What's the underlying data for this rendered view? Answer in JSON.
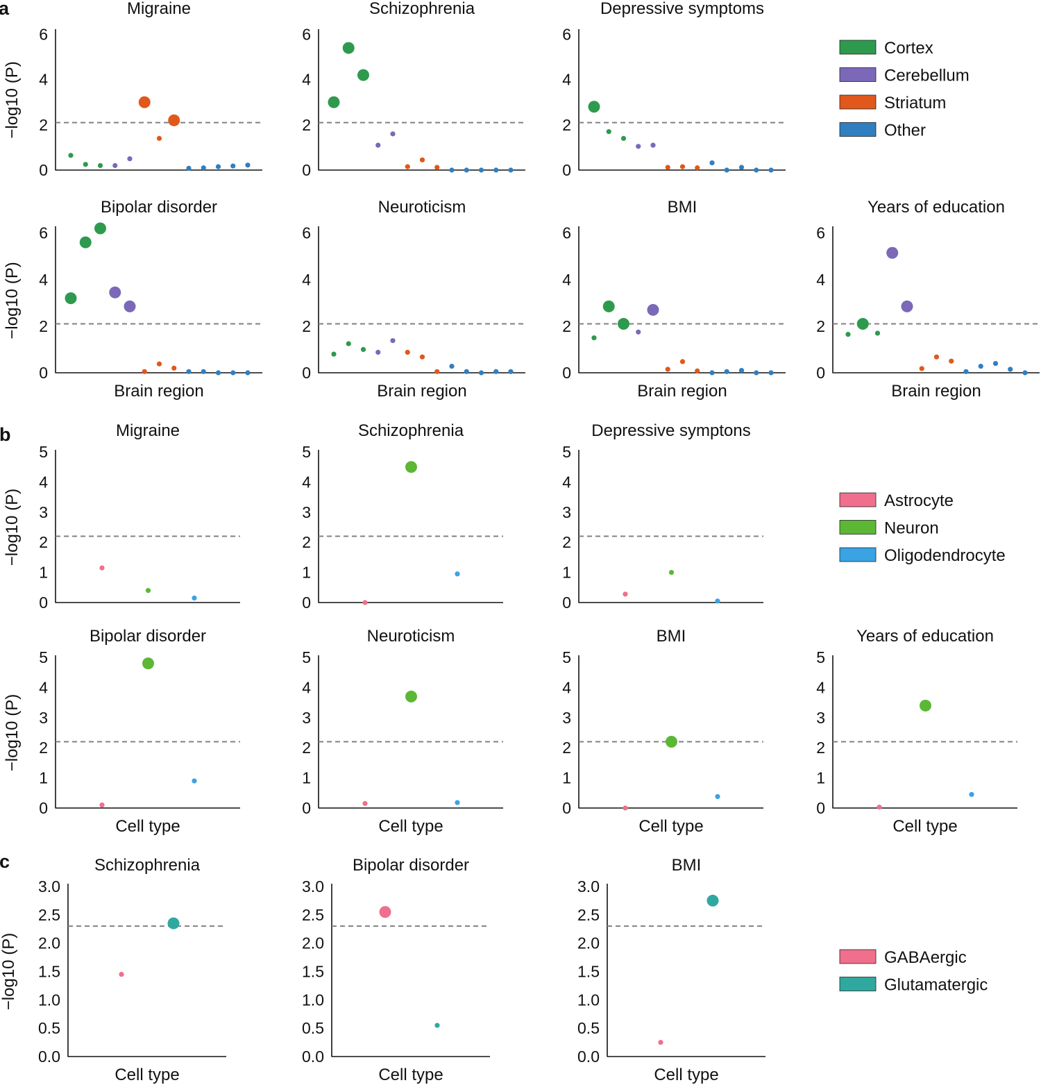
{
  "panels": [
    {
      "letter": "a",
      "xlabel": "Brain region",
      "ylabel": "−log10 (P)",
      "yticks": [
        "0",
        "2",
        "4",
        "6"
      ],
      "ylim": [
        0,
        6.2
      ],
      "threshold": 2.1,
      "legend": [
        {
          "label": "Cortex",
          "color": "#2e9a4e"
        },
        {
          "label": "Cerebellum",
          "color": "#7b68b8"
        },
        {
          "label": "Striatum",
          "color": "#e0581b"
        },
        {
          "label": "Other",
          "color": "#2f7fc1"
        }
      ]
    },
    {
      "letter": "b",
      "xlabel": "Cell type",
      "ylabel": "−log10 (P)",
      "yticks": [
        "0",
        "1",
        "2",
        "3",
        "4",
        "5"
      ],
      "ylim": [
        0,
        5
      ],
      "threshold": 2.2,
      "legend": [
        {
          "label": "Astrocyte",
          "color": "#ef6f8c"
        },
        {
          "label": "Neuron",
          "color": "#5cb735"
        },
        {
          "label": "Oligodendrocyte",
          "color": "#3aa3e3"
        }
      ]
    },
    {
      "letter": "c",
      "xlabel": "Cell type",
      "ylabel": "−log10 (P)",
      "yticks": [
        "0.0",
        "0.5",
        "1.0",
        "1.5",
        "2.0",
        "2.5",
        "3.0"
      ],
      "ylim": [
        0,
        3
      ],
      "threshold": 2.3,
      "legend": [
        {
          "label": "GABAergic",
          "color": "#ef6f8c"
        },
        {
          "label": "Glutamatergic",
          "color": "#2fa9a0"
        }
      ]
    }
  ],
  "chart_data": [
    {
      "type": "scatter",
      "panel": "a",
      "title": "Migraine",
      "ylabel": "−log10 (P)",
      "xlabel": "",
      "ylim": [
        0,
        6.2
      ],
      "threshold": 2.1,
      "points": [
        {
          "g": 0,
          "y": 0.65
        },
        {
          "g": 0,
          "y": 0.25
        },
        {
          "g": 0,
          "y": 0.2
        },
        {
          "g": 1,
          "y": 0.2
        },
        {
          "g": 1,
          "y": 0.5
        },
        {
          "g": 2,
          "y": 3.0
        },
        {
          "g": 2,
          "y": 1.4
        },
        {
          "g": 2,
          "y": 2.2
        },
        {
          "g": 3,
          "y": 0.08
        },
        {
          "g": 3,
          "y": 0.1
        },
        {
          "g": 3,
          "y": 0.15
        },
        {
          "g": 3,
          "y": 0.18
        },
        {
          "g": 3,
          "y": 0.22
        }
      ]
    },
    {
      "type": "scatter",
      "panel": "a",
      "title": "Schizophrenia",
      "ylabel": "",
      "xlabel": "",
      "ylim": [
        0,
        6.2
      ],
      "threshold": 2.1,
      "points": [
        {
          "g": 0,
          "y": 3.0
        },
        {
          "g": 0,
          "y": 5.4
        },
        {
          "g": 0,
          "y": 4.2
        },
        {
          "g": 1,
          "y": 1.1
        },
        {
          "g": 1,
          "y": 1.6
        },
        {
          "g": 2,
          "y": 0.15
        },
        {
          "g": 2,
          "y": 0.45
        },
        {
          "g": 2,
          "y": 0.12
        },
        {
          "g": 3,
          "y": 0.0
        },
        {
          "g": 3,
          "y": 0.0
        },
        {
          "g": 3,
          "y": 0.0
        },
        {
          "g": 3,
          "y": 0.0
        },
        {
          "g": 3,
          "y": 0.0
        }
      ]
    },
    {
      "type": "scatter",
      "panel": "a",
      "title": "Depressive symptoms",
      "ylabel": "",
      "xlabel": "",
      "ylim": [
        0,
        6.2
      ],
      "threshold": 2.1,
      "points": [
        {
          "g": 0,
          "y": 2.8
        },
        {
          "g": 0,
          "y": 1.7
        },
        {
          "g": 0,
          "y": 1.4
        },
        {
          "g": 1,
          "y": 1.05
        },
        {
          "g": 1,
          "y": 1.1
        },
        {
          "g": 2,
          "y": 0.12
        },
        {
          "g": 2,
          "y": 0.15
        },
        {
          "g": 2,
          "y": 0.1
        },
        {
          "g": 3,
          "y": 0.32
        },
        {
          "g": 3,
          "y": 0.0
        },
        {
          "g": 3,
          "y": 0.12
        },
        {
          "g": 3,
          "y": 0.0
        },
        {
          "g": 3,
          "y": 0.0
        }
      ]
    },
    {
      "type": "scatter",
      "panel": "a",
      "title": "Bipolar disorder",
      "ylabel": "−log10 (P)",
      "xlabel": "Brain region",
      "ylim": [
        0,
        6.2
      ],
      "threshold": 2.1,
      "points": [
        {
          "g": 0,
          "y": 3.2
        },
        {
          "g": 0,
          "y": 5.6
        },
        {
          "g": 0,
          "y": 6.2
        },
        {
          "g": 1,
          "y": 3.45
        },
        {
          "g": 1,
          "y": 2.85
        },
        {
          "g": 2,
          "y": 0.05
        },
        {
          "g": 2,
          "y": 0.38
        },
        {
          "g": 2,
          "y": 0.2
        },
        {
          "g": 3,
          "y": 0.05
        },
        {
          "g": 3,
          "y": 0.05
        },
        {
          "g": 3,
          "y": 0.0
        },
        {
          "g": 3,
          "y": 0.0
        },
        {
          "g": 3,
          "y": 0.0
        }
      ]
    },
    {
      "type": "scatter",
      "panel": "a",
      "title": "Neuroticism",
      "ylabel": "",
      "xlabel": "Brain region",
      "ylim": [
        0,
        6.2
      ],
      "threshold": 2.1,
      "points": [
        {
          "g": 0,
          "y": 0.8
        },
        {
          "g": 0,
          "y": 1.25
        },
        {
          "g": 0,
          "y": 1.0
        },
        {
          "g": 1,
          "y": 0.88
        },
        {
          "g": 1,
          "y": 1.38
        },
        {
          "g": 2,
          "y": 0.88
        },
        {
          "g": 2,
          "y": 0.68
        },
        {
          "g": 2,
          "y": 0.05
        },
        {
          "g": 3,
          "y": 0.28
        },
        {
          "g": 3,
          "y": 0.05
        },
        {
          "g": 3,
          "y": 0.0
        },
        {
          "g": 3,
          "y": 0.05
        },
        {
          "g": 3,
          "y": 0.05
        }
      ]
    },
    {
      "type": "scatter",
      "panel": "a",
      "title": "BMI",
      "ylabel": "",
      "xlabel": "Brain region",
      "ylim": [
        0,
        6.2
      ],
      "threshold": 2.1,
      "points": [
        {
          "g": 0,
          "y": 1.5
        },
        {
          "g": 0,
          "y": 2.85
        },
        {
          "g": 0,
          "y": 2.1
        },
        {
          "g": 1,
          "y": 1.75
        },
        {
          "g": 1,
          "y": 2.7
        },
        {
          "g": 2,
          "y": 0.15
        },
        {
          "g": 2,
          "y": 0.48
        },
        {
          "g": 2,
          "y": 0.08
        },
        {
          "g": 3,
          "y": 0.0
        },
        {
          "g": 3,
          "y": 0.05
        },
        {
          "g": 3,
          "y": 0.1
        },
        {
          "g": 3,
          "y": 0.0
        },
        {
          "g": 3,
          "y": 0.0
        }
      ]
    },
    {
      "type": "scatter",
      "panel": "a",
      "title": "Years of education",
      "ylabel": "",
      "xlabel": "Brain region",
      "ylim": [
        0,
        6.2
      ],
      "threshold": 2.1,
      "points": [
        {
          "g": 0,
          "y": 1.65
        },
        {
          "g": 0,
          "y": 2.1
        },
        {
          "g": 0,
          "y": 1.7
        },
        {
          "g": 1,
          "y": 5.15
        },
        {
          "g": 1,
          "y": 2.85
        },
        {
          "g": 2,
          "y": 0.18
        },
        {
          "g": 2,
          "y": 0.68
        },
        {
          "g": 2,
          "y": 0.5
        },
        {
          "g": 3,
          "y": 0.05
        },
        {
          "g": 3,
          "y": 0.28
        },
        {
          "g": 3,
          "y": 0.4
        },
        {
          "g": 3,
          "y": 0.15
        },
        {
          "g": 3,
          "y": 0.0
        }
      ]
    },
    {
      "type": "scatter",
      "panel": "b",
      "title": "Migraine",
      "ylabel": "−log10 (P)",
      "xlabel": "",
      "ylim": [
        0,
        5
      ],
      "threshold": 2.2,
      "points": [
        {
          "g": 0,
          "y": 1.15
        },
        {
          "g": 1,
          "y": 0.4
        },
        {
          "g": 2,
          "y": 0.15
        }
      ]
    },
    {
      "type": "scatter",
      "panel": "b",
      "title": "Schizophrenia",
      "ylabel": "",
      "xlabel": "",
      "ylim": [
        0,
        5
      ],
      "threshold": 2.2,
      "points": [
        {
          "g": 0,
          "y": 0.0
        },
        {
          "g": 1,
          "y": 4.5
        },
        {
          "g": 2,
          "y": 0.95
        }
      ]
    },
    {
      "type": "scatter",
      "panel": "b",
      "title": "Depressive symptons",
      "ylabel": "",
      "xlabel": "",
      "ylim": [
        0,
        5
      ],
      "threshold": 2.2,
      "points": [
        {
          "g": 0,
          "y": 0.28
        },
        {
          "g": 1,
          "y": 1.0
        },
        {
          "g": 2,
          "y": 0.05
        }
      ]
    },
    {
      "type": "scatter",
      "panel": "b",
      "title": "Bipolar disorder",
      "ylabel": "−log10 (P)",
      "xlabel": "Cell type",
      "ylim": [
        0,
        5
      ],
      "threshold": 2.2,
      "points": [
        {
          "g": 0,
          "y": 0.1
        },
        {
          "g": 1,
          "y": 4.8
        },
        {
          "g": 2,
          "y": 0.9
        }
      ]
    },
    {
      "type": "scatter",
      "panel": "b",
      "title": "Neuroticism",
      "ylabel": "",
      "xlabel": "Cell type",
      "ylim": [
        0,
        5
      ],
      "threshold": 2.2,
      "points": [
        {
          "g": 0,
          "y": 0.15
        },
        {
          "g": 1,
          "y": 3.7
        },
        {
          "g": 2,
          "y": 0.18
        }
      ]
    },
    {
      "type": "scatter",
      "panel": "b",
      "title": "BMI",
      "ylabel": "",
      "xlabel": "Cell type",
      "ylim": [
        0,
        5
      ],
      "threshold": 2.2,
      "points": [
        {
          "g": 0,
          "y": 0.0
        },
        {
          "g": 1,
          "y": 2.2
        },
        {
          "g": 2,
          "y": 0.38
        }
      ]
    },
    {
      "type": "scatter",
      "panel": "b",
      "title": "Years of education",
      "ylabel": "",
      "xlabel": "Cell type",
      "ylim": [
        0,
        5
      ],
      "threshold": 2.2,
      "points": [
        {
          "g": 0,
          "y": 0.03
        },
        {
          "g": 1,
          "y": 3.4
        },
        {
          "g": 2,
          "y": 0.45
        }
      ]
    },
    {
      "type": "scatter",
      "panel": "c",
      "title": "Schizophrenia",
      "ylabel": "−log10 (P)",
      "xlabel": "Cell type",
      "ylim": [
        0,
        3
      ],
      "threshold": 2.3,
      "points": [
        {
          "g": 0,
          "y": 1.45
        },
        {
          "g": 1,
          "y": 2.35
        }
      ]
    },
    {
      "type": "scatter",
      "panel": "c",
      "title": "Bipolar disorder",
      "ylabel": "",
      "xlabel": "Cell type",
      "ylim": [
        0,
        3
      ],
      "threshold": 2.3,
      "points": [
        {
          "g": 0,
          "y": 2.55
        },
        {
          "g": 1,
          "y": 0.55
        }
      ]
    },
    {
      "type": "scatter",
      "panel": "c",
      "title": "BMI",
      "ylabel": "",
      "xlabel": "Cell type",
      "ylim": [
        0,
        3
      ],
      "threshold": 2.3,
      "points": [
        {
          "g": 0,
          "y": 0.25
        },
        {
          "g": 1,
          "y": 2.75
        }
      ]
    }
  ]
}
